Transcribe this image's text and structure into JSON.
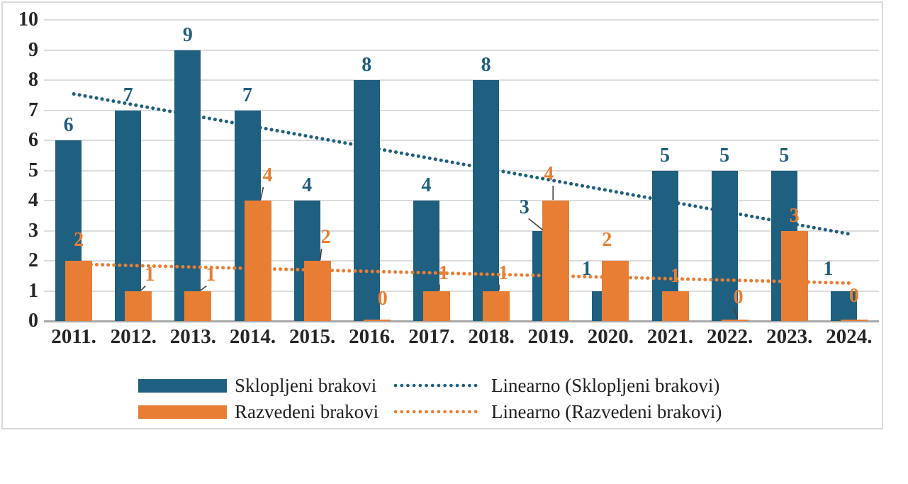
{
  "chart_data": {
    "type": "bar",
    "title": "",
    "categories": [
      "2011.",
      "2012.",
      "2013.",
      "2014.",
      "2015.",
      "2016.",
      "2017.",
      "2018.",
      "2019.",
      "2020.",
      "2021.",
      "2022.",
      "2023.",
      "2024."
    ],
    "series": [
      {
        "name": "Sklopljeni brakovi",
        "color": "#1F5F7F",
        "values": [
          6,
          7,
          9,
          7,
          4,
          8,
          4,
          8,
          3,
          1,
          5,
          5,
          5,
          1
        ]
      },
      {
        "name": "Razvedeni brakovi",
        "color": "#E87E34",
        "values": [
          2,
          1,
          1,
          4,
          2,
          0,
          1,
          1,
          4,
          2,
          1,
          0,
          3,
          0
        ]
      }
    ],
    "trendlines": [
      {
        "name": "Linearno (Sklopljeni brakovi)",
        "color": "#1F5F7F",
        "start_value": 7.54,
        "end_value": 2.89
      },
      {
        "name": "Linearno (Razvedeni brakovi)",
        "color": "#E87E34",
        "start_value": 1.89,
        "end_value": 1.26
      }
    ],
    "y_axis": {
      "min": 0,
      "max": 10,
      "step": 1,
      "tick_labels": [
        "0",
        "1",
        "2",
        "3",
        "4",
        "5",
        "6",
        "7",
        "8",
        "9",
        "10"
      ]
    },
    "grid": true,
    "legend_position": "bottom",
    "data_labels_visible": true,
    "label_adjustments": {
      "0": {
        "8": {
          "dx": -30,
          "dy": -12,
          "leader": true
        },
        "9": {
          "dx": -26,
          "dy": -10
        },
        "13": {
          "dx": -22,
          "dy": -10
        }
      },
      "1": {
        "0": {
          "dx": 0,
          "dy": -8
        },
        "1": {
          "dx": 16,
          "dy": -2,
          "leader": true
        },
        "2": {
          "dx": 18,
          "dy": -2,
          "leader": true
        },
        "3": {
          "dx": 14,
          "dy": -14,
          "leader": true
        },
        "4": {
          "dx": 12,
          "dy": -12,
          "leader": true
        },
        "5": {
          "dx": 8,
          "dy": -8
        },
        "6": {
          "dx": 10,
          "dy": -4,
          "leader": true
        },
        "7": {
          "dx": 10,
          "dy": -4,
          "leader": true
        },
        "8": {
          "dx": -10,
          "dy": -16,
          "leader": true
        },
        "9": {
          "dx": -12,
          "dy": -8
        },
        "11": {
          "dx": 5,
          "dy": -10,
          "leader": true
        },
        "13": {
          "dx": 0,
          "dy": -12
        }
      }
    },
    "colors": {
      "gridline": "#DCDCDC",
      "axis_line": "#A8A8A8",
      "axis_text": "#262626",
      "leader_line": "#404040",
      "frame_border": "#D9D9D9"
    }
  },
  "legend": {
    "items": [
      {
        "label": "Sklopljeni brakovi"
      },
      {
        "label": "Linearno (Sklopljeni brakovi)"
      },
      {
        "label": "Razvedeni brakovi"
      },
      {
        "label": "Linearno (Razvedeni brakovi)"
      }
    ]
  }
}
